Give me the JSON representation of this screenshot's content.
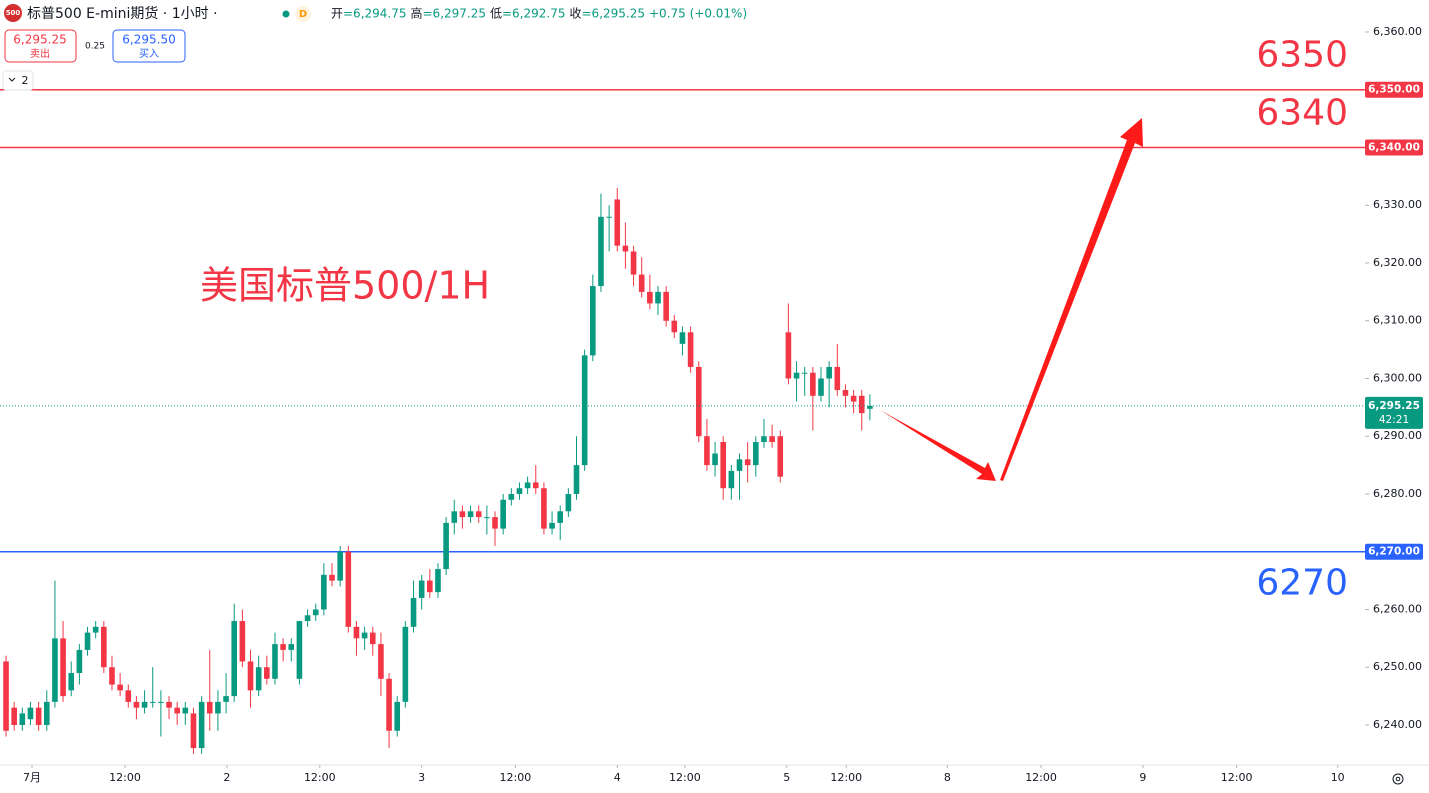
{
  "header": {
    "badge": "500",
    "title": "标普500 E-mini期货 · 1小时 ·",
    "flag": "D",
    "ohlc": [
      {
        "label": "开",
        "value": "=6,294.75"
      },
      {
        "label": "高",
        "value": "=6,297.25"
      },
      {
        "label": "低",
        "value": "=6,292.75"
      },
      {
        "label": "收",
        "value": "=6,295.25"
      }
    ],
    "change": "+0.75 (+0.01%)",
    "sell": {
      "price": "6,295.25",
      "label": "卖出"
    },
    "spread": "0.25",
    "buy": {
      "price": "6,295.50",
      "label": "买入"
    },
    "indicators": "2"
  },
  "chart_data": {
    "type": "candlestick",
    "annotation": "美国标普500/1H",
    "up_color": "#089981",
    "down_color": "#f23645",
    "open": [
      6251,
      6243,
      6240,
      6241,
      6243,
      6240,
      6244,
      6255,
      6246,
      6249,
      6253,
      6256,
      6257,
      6250,
      6247,
      6246,
      6244,
      6243,
      6244,
      6244,
      6244,
      6243,
      6242,
      6242,
      6236,
      6244,
      6242,
      6244,
      6245,
      6258,
      6251,
      6246,
      6250,
      6248,
      6254,
      6253,
      6248,
      6258,
      6259,
      6260,
      6266,
      6265,
      6270,
      6257,
      6255,
      6256,
      6254,
      6248,
      6239,
      6244,
      6257,
      6262,
      6265,
      6263,
      6267,
      6275,
      6277,
      6276,
      6277,
      6276,
      6276,
      6274,
      6279,
      6280,
      6281,
      6282,
      6281,
      6274,
      6275,
      6277,
      6280,
      6285,
      6304,
      6316,
      6328,
      6331,
      6323,
      6322,
      6318,
      6315,
      6313,
      6315,
      6310,
      6306,
      6308,
      6302,
      6290,
      6285,
      6289,
      6281,
      6284,
      6286,
      6285,
      6289,
      6290,
      6290,
      6308,
      6300,
      6301,
      6301,
      6297,
      6300,
      6302,
      6298,
      6297,
      6297,
      6294.75
    ],
    "high": [
      6252,
      6244,
      6243,
      6244,
      6244,
      6246,
      6265,
      6258,
      6251,
      6254,
      6257,
      6258,
      6258,
      6252,
      6249,
      6247,
      6245,
      6246,
      6250,
      6246,
      6245,
      6244,
      6244,
      6243,
      6245,
      6253,
      6246,
      6249,
      6261,
      6260,
      6253,
      6252,
      6252,
      6256,
      6255,
      6255,
      6258,
      6260,
      6261,
      6268,
      6268,
      6271,
      6271,
      6258,
      6257,
      6257,
      6256,
      6249,
      6245,
      6258,
      6265,
      6266,
      6267,
      6268,
      6276,
      6279,
      6278,
      6278,
      6278,
      6278,
      6277,
      6280,
      6281,
      6282,
      6283,
      6285,
      6282,
      6277,
      6278,
      6281,
      6290,
      6305,
      6318,
      6332,
      6330,
      6333,
      6327,
      6323,
      6321,
      6318,
      6316,
      6316,
      6311,
      6309,
      6309,
      6303,
      6293,
      6289,
      6290,
      6285,
      6287,
      6289,
      6290,
      6293,
      6292,
      6291,
      6313,
      6303,
      6302,
      6302,
      6302,
      6303,
      6306,
      6299,
      6298,
      6298,
      6297.25
    ],
    "low": [
      6238,
      6239,
      6239,
      6240,
      6239,
      6239,
      6243,
      6244,
      6245,
      6247,
      6252,
      6255,
      6249,
      6246,
      6245,
      6243,
      6241,
      6242,
      6243,
      6238,
      6241,
      6240,
      6240,
      6235,
      6235,
      6239,
      6239,
      6242,
      6244,
      6250,
      6243,
      6245,
      6247,
      6247,
      6251,
      6251,
      6247,
      6257,
      6258,
      6259,
      6264,
      6264,
      6256,
      6252,
      6253,
      6252,
      6245,
      6236,
      6238,
      6243,
      6256,
      6260,
      6262,
      6262,
      6266,
      6273,
      6274,
      6275,
      6275,
      6273,
      6271,
      6273,
      6278,
      6279,
      6280,
      6280,
      6273,
      6273,
      6272,
      6276,
      6279,
      6284,
      6303,
      6315,
      6322,
      6322,
      6319,
      6316,
      6314,
      6312,
      6311,
      6309,
      6307,
      6304,
      6301,
      6289,
      6284,
      6283,
      6279,
      6279,
      6279,
      6282,
      6283,
      6288,
      6288,
      6282,
      6299,
      6296,
      6297,
      6291,
      6296,
      6295,
      6297,
      6295,
      6294,
      6291,
      6292.75
    ],
    "close": [
      6239,
      6240,
      6242,
      6243,
      6240,
      6244,
      6255,
      6245,
      6249,
      6253,
      6256,
      6257,
      6250,
      6247,
      6246,
      6244,
      6243,
      6244,
      6244,
      6244,
      6243,
      6242,
      6243,
      6236,
      6244,
      6242,
      6244,
      6245,
      6258,
      6251,
      6246,
      6250,
      6248,
      6254,
      6253,
      6254,
      6258,
      6259,
      6260,
      6266,
      6265,
      6270,
      6257,
      6255,
      6256,
      6254,
      6248,
      6239,
      6244,
      6257,
      6262,
      6265,
      6263,
      6267,
      6275,
      6277,
      6276,
      6277,
      6276,
      6276,
      6274,
      6279,
      6280,
      6281,
      6282,
      6281,
      6274,
      6275,
      6277,
      6280,
      6285,
      6304,
      6316,
      6328,
      6328,
      6323,
      6322,
      6318,
      6315,
      6313,
      6315,
      6310,
      6308,
      6308,
      6302,
      6290,
      6285,
      6287,
      6281,
      6284,
      6286,
      6285,
      6289,
      6290,
      6289,
      6283,
      6300,
      6301,
      6301,
      6297,
      6300,
      6302,
      6298,
      6297,
      6296,
      6294,
      6295.25
    ],
    "xlim": [
      -0.74,
      166.75
    ],
    "xticks": [
      {
        "value": 3.19,
        "label": "7月"
      },
      {
        "value": 14.6,
        "label": "12:00"
      },
      {
        "value": 27.1,
        "label": "2"
      },
      {
        "value": 38.5,
        "label": "12:00"
      },
      {
        "value": 51.0,
        "label": "3"
      },
      {
        "value": 62.5,
        "label": "12:00"
      },
      {
        "value": 75.0,
        "label": "4"
      },
      {
        "value": 83.3,
        "label": "12:00"
      },
      {
        "value": 95.8,
        "label": "5"
      },
      {
        "value": 103.1,
        "label": "12:00"
      },
      {
        "value": 115.5,
        "label": "8"
      },
      {
        "value": 127.0,
        "label": "12:00"
      },
      {
        "value": 139.5,
        "label": "9"
      },
      {
        "value": 151.0,
        "label": "12:00"
      },
      {
        "value": 163.4,
        "label": "10"
      }
    ],
    "ylim": [
      6233.07,
      6365.54
    ],
    "yticks": [
      {
        "value": 6360,
        "label": "6,360.00"
      },
      {
        "value": 6330,
        "label": "6,330.00"
      },
      {
        "value": 6320,
        "label": "6,320.00"
      },
      {
        "value": 6310,
        "label": "6,310.00"
      },
      {
        "value": 6300,
        "label": "6,300.00"
      },
      {
        "value": 6290,
        "label": "6,290.00"
      },
      {
        "value": 6280,
        "label": "6,280.00"
      },
      {
        "value": 6260,
        "label": "6,260.00"
      },
      {
        "value": 6250,
        "label": "6,250.00"
      },
      {
        "value": 6240,
        "label": "6,240.00"
      }
    ],
    "grid": false,
    "levels": [
      {
        "value": 6350,
        "label": "6350",
        "axis_label": "6,350.00",
        "color": "#f23645"
      },
      {
        "value": 6340,
        "label": "6340",
        "axis_label": "6,340.00",
        "color": "#f23645"
      },
      {
        "value": 6270,
        "label": "6270",
        "axis_label": "6,270.00",
        "color": "#2962ff"
      }
    ],
    "last_price": {
      "value": 6295.25,
      "label": "6,295.25",
      "countdown": "42:21",
      "color": "#089981"
    }
  }
}
